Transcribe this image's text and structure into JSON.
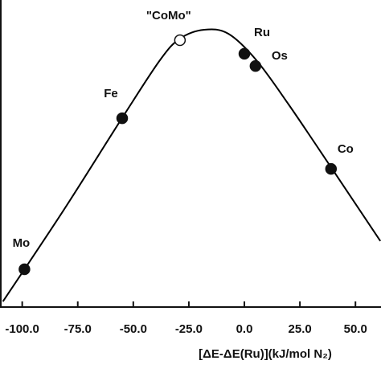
{
  "chart_data": {
    "type": "line",
    "x_label": "[ΔE-ΔE(Ru)](kJ/mol N₂)",
    "xlim": [
      -110,
      61.5
    ],
    "ylim": [
      0,
      100
    ],
    "xticks": [
      {
        "value": -100,
        "label": "-100.0"
      },
      {
        "value": -75,
        "label": "-75.0"
      },
      {
        "value": -50,
        "label": "-50.0"
      },
      {
        "value": -25,
        "label": "-25.0"
      },
      {
        "value": 0,
        "label": "0.0"
      },
      {
        "value": 25,
        "label": "25.0"
      },
      {
        "value": 50,
        "label": "50.0"
      }
    ],
    "curve": {
      "color": "#000000",
      "x": [
        -108.7,
        -81.5,
        -55.1,
        -38,
        -29,
        -18.1,
        -7.2,
        5.4,
        19.9,
        39.5,
        61.2
      ],
      "y": [
        1.8,
        31.4,
        61.5,
        80.4,
        87.4,
        90.3,
        89,
        80.4,
        66,
        45,
        21.5
      ]
    },
    "points": [
      {
        "label": "Mo",
        "x": -99,
        "y": 12.3,
        "filled": true
      },
      {
        "label": "Fe",
        "x": -55,
        "y": 61.5,
        "filled": true
      },
      {
        "label": "\"CoMo\"",
        "x": -29,
        "y": 86.9,
        "filled": false
      },
      {
        "label": "Ru",
        "x": 0,
        "y": 82.5,
        "filled": true
      },
      {
        "label": "Os",
        "x": 5,
        "y": 78.5,
        "filled": true
      },
      {
        "label": "Co",
        "x": 39,
        "y": 45,
        "filled": true
      }
    ]
  }
}
